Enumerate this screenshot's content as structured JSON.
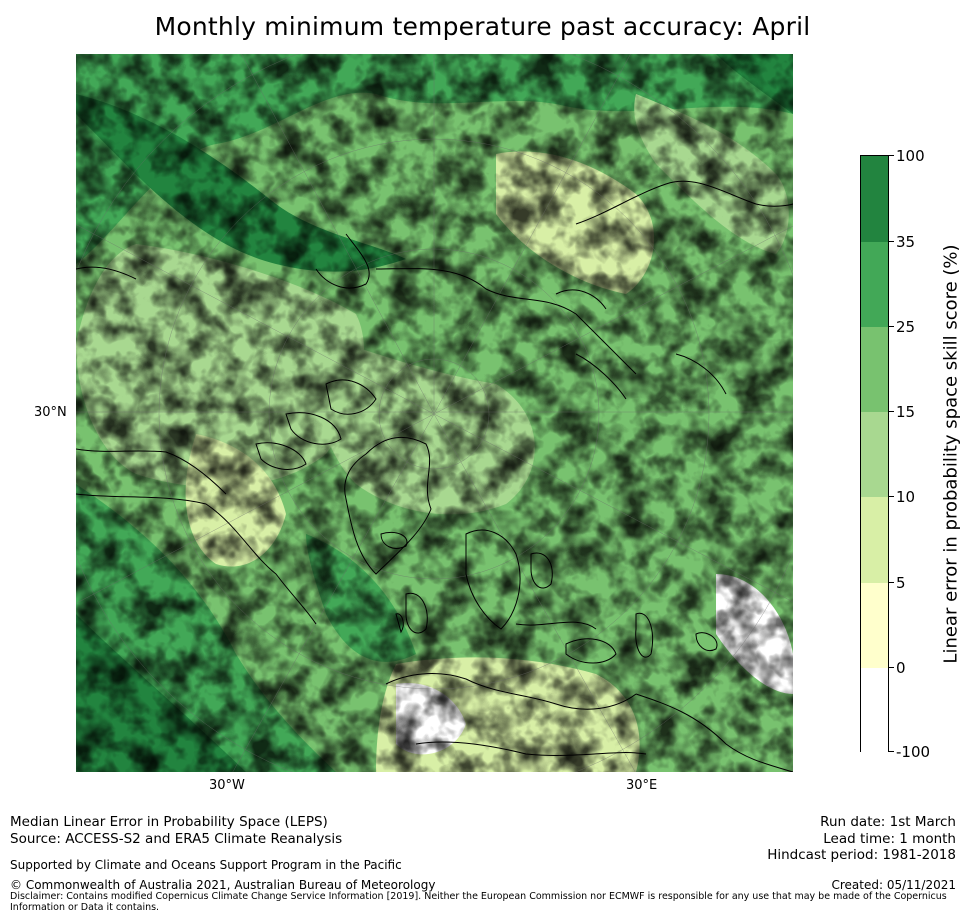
{
  "title": "Monthly minimum temperature past accuracy: April",
  "map": {
    "axis_labels": {
      "lon_west": "30°W",
      "lon_east": "30°E",
      "lat": "30°N"
    },
    "projection": "north polar stereographic"
  },
  "colorbar": {
    "label": "Linear error in probability space skill score (%)",
    "ticks": [
      "100",
      "35",
      "25",
      "15",
      "10",
      "5",
      "0",
      "-100"
    ],
    "colors": [
      "#22843f",
      "#42a857",
      "#78c26f",
      "#a8d890",
      "#d8efa6",
      "#ffffcc",
      "#ffffff"
    ]
  },
  "footer": {
    "left_line1": "Median Linear Error in Probability Space (LEPS)",
    "left_line2": "Source: ACCESS-S2 and ERA5 Climate Reanalysis",
    "support": "Supported by Climate and Oceans Support Program in the Pacific",
    "copyright": "© Commonwealth of Australia 2021, Australian Bureau of Meteorology",
    "disclaimer": "Disclaimer: Contains modified Copernicus Climate Change Service Information [2019]. Neither the European Commission nor ECMWF is responsible for any use that may be made of the Copernicus Information or Data it contains.",
    "run_date": "Run date: 1st March",
    "lead_time": "Lead time: 1 month",
    "hindcast": "Hindcast period: 1981-2018",
    "created": "Created: 05/11/2021"
  }
}
